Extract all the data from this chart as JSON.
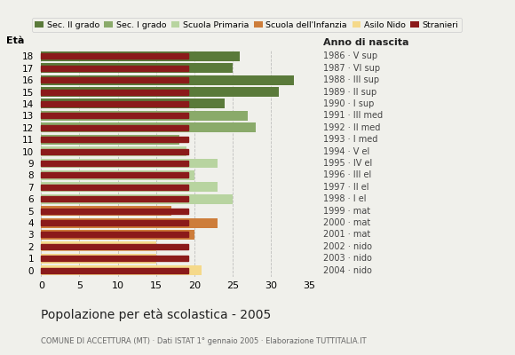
{
  "ages": [
    18,
    17,
    16,
    15,
    14,
    13,
    12,
    11,
    10,
    9,
    8,
    7,
    6,
    5,
    4,
    3,
    2,
    1,
    0
  ],
  "values": [
    26,
    25,
    33,
    31,
    24,
    27,
    28,
    18,
    19,
    23,
    20,
    23,
    25,
    17,
    23,
    20,
    15,
    15,
    21
  ],
  "colors": [
    "#5a7a3a",
    "#5a7a3a",
    "#5a7a3a",
    "#5a7a3a",
    "#5a7a3a",
    "#8aaa6a",
    "#8aaa6a",
    "#8aaa6a",
    "#b8d4a0",
    "#b8d4a0",
    "#b8d4a0",
    "#b8d4a0",
    "#b8d4a0",
    "#cd7d3a",
    "#cd7d3a",
    "#cd7d3a",
    "#f5d98a",
    "#f5d98a",
    "#f5d98a"
  ],
  "stranger_color": "#8b1a1a",
  "right_labels": [
    "1986 · V sup",
    "1987 · VI sup",
    "1988 · III sup",
    "1989 · II sup",
    "1990 · I sup",
    "1991 · III med",
    "1992 · II med",
    "1993 · I med",
    "1994 · V el",
    "1995 · IV el",
    "1996 · III el",
    "1997 · II el",
    "1998 · I el",
    "1999 · mat",
    "2000 · mat",
    "2001 · mat",
    "2002 · nido",
    "2003 · nido",
    "2004 · nido"
  ],
  "legend_labels": [
    "Sec. II grado",
    "Sec. I grado",
    "Scuola Primaria",
    "Scuola dell'Infanzia",
    "Asilo Nido",
    "Stranieri"
  ],
  "legend_colors": [
    "#5a7a3a",
    "#8aaa6a",
    "#b8d4a0",
    "#cd7d3a",
    "#f5d98a",
    "#8b1a1a"
  ],
  "title": "Popolazione per età scolastica - 2005",
  "subtitle": "COMUNE DI ACCETTURA (MT) · Dati ISTAT 1° gennaio 2005 · Elaborazione TUTTITALIA.IT",
  "label_eta": "Età",
  "label_anno": "Anno di nascita",
  "xlim": [
    0,
    35
  ],
  "xticks": [
    0,
    5,
    10,
    15,
    20,
    25,
    30,
    35
  ],
  "bg_color": "#f0f0eb",
  "grid_color": "#aaaaaa"
}
